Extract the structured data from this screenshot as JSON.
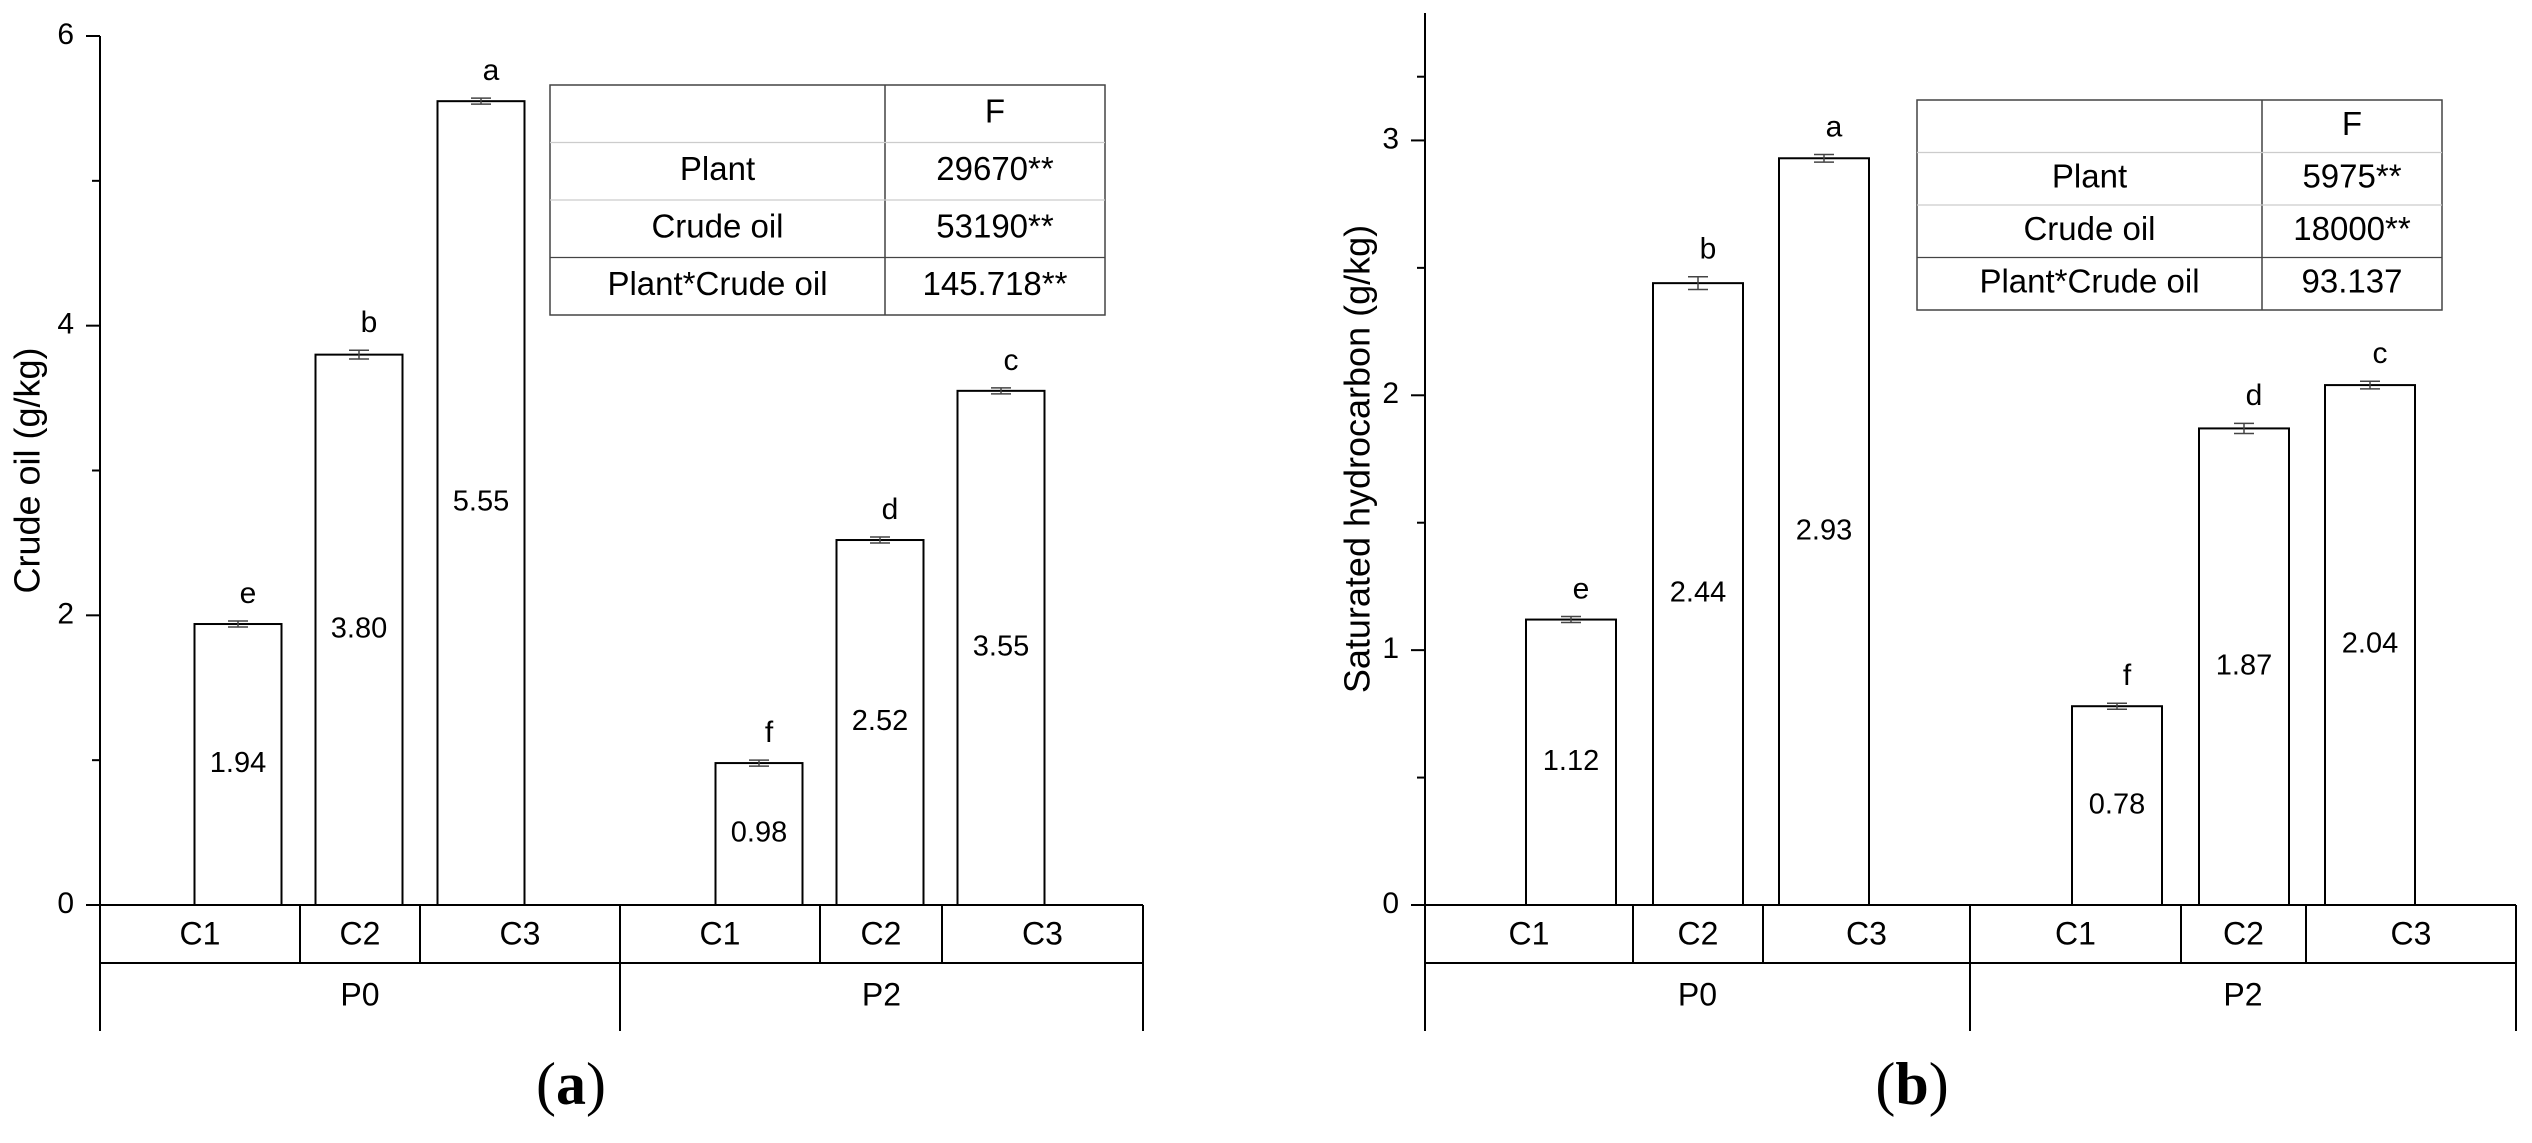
{
  "chart_data": [
    {
      "type": "bar",
      "panel_label": "a",
      "ylabel": "Crude oil (g/kg)",
      "ylim": [
        0,
        6
      ],
      "yticks": [
        "0",
        "2",
        "4",
        "6"
      ],
      "groups": [
        "P0",
        "P2"
      ],
      "categories": [
        "C1",
        "C2",
        "C3"
      ],
      "bars": [
        {
          "group": "P0",
          "category": "C1",
          "value": 1.94,
          "label": "1.94",
          "letter": "e",
          "err": 0.01
        },
        {
          "group": "P0",
          "category": "C2",
          "value": 3.8,
          "label": "3.80",
          "letter": "b",
          "err": 0.03
        },
        {
          "group": "P0",
          "category": "C3",
          "value": 5.55,
          "label": "5.55",
          "letter": "a",
          "err": 0.01
        },
        {
          "group": "P2",
          "category": "C1",
          "value": 0.98,
          "label": "0.98",
          "letter": "f",
          "err": 0.02
        },
        {
          "group": "P2",
          "category": "C2",
          "value": 2.52,
          "label": "2.52",
          "letter": "d",
          "err": 0.01
        },
        {
          "group": "P2",
          "category": "C3",
          "value": 3.55,
          "label": "3.55",
          "letter": "c",
          "err": 0.01
        }
      ],
      "table": {
        "header": "F",
        "rows": [
          {
            "factor": "Plant",
            "F": "29670**"
          },
          {
            "factor": "Crude oil",
            "F": "53190**"
          },
          {
            "factor": "Plant*Crude oil",
            "F": "145.718**"
          }
        ]
      },
      "caption": {
        "open": "(",
        "letter": "a",
        "close": ")"
      }
    },
    {
      "type": "bar",
      "panel_label": "b",
      "ylabel": "Saturated hydrocarbon (g/kg)",
      "ylim": [
        0,
        3.5
      ],
      "yticks": [
        "0",
        "1",
        "2",
        "3"
      ],
      "groups": [
        "P0",
        "P2"
      ],
      "categories": [
        "C1",
        "C2",
        "C3"
      ],
      "bars": [
        {
          "group": "P0",
          "category": "C1",
          "value": 1.12,
          "label": "1.12",
          "letter": "e",
          "err": 0.01
        },
        {
          "group": "P0",
          "category": "C2",
          "value": 2.44,
          "label": "2.44",
          "letter": "b",
          "err": 0.025
        },
        {
          "group": "P0",
          "category": "C3",
          "value": 2.93,
          "label": "2.93",
          "letter": "a",
          "err": 0.015
        },
        {
          "group": "P2",
          "category": "C1",
          "value": 0.78,
          "label": "0.78",
          "letter": "f",
          "err": 0.008
        },
        {
          "group": "P2",
          "category": "C2",
          "value": 1.87,
          "label": "1.87",
          "letter": "d",
          "err": 0.02
        },
        {
          "group": "P2",
          "category": "C3",
          "value": 2.04,
          "label": "2.04",
          "letter": "c",
          "err": 0.015
        }
      ],
      "table": {
        "header": "F",
        "rows": [
          {
            "factor": "Plant",
            "F": "5975**"
          },
          {
            "factor": "Crude oil",
            "F": "18000**"
          },
          {
            "factor": "Plant*Crude oil",
            "F": "93.137"
          }
        ]
      },
      "caption": {
        "open": "(",
        "letter": "b",
        "close": ")"
      }
    }
  ]
}
